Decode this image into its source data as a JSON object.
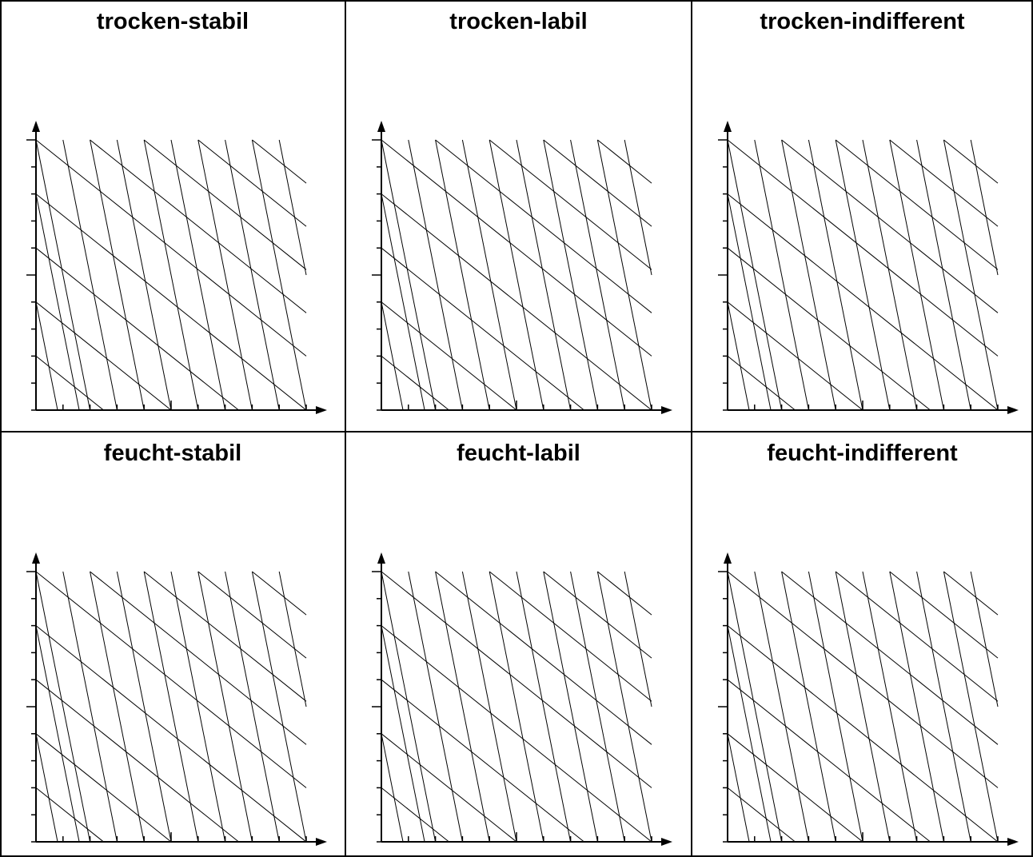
{
  "panels": [
    {
      "title": "trocken-stabil"
    },
    {
      "title": "trocken-labil"
    },
    {
      "title": "trocken-indifferent"
    },
    {
      "title": "feucht-stabil"
    },
    {
      "title": "feucht-labil"
    },
    {
      "title": "feucht-indifferent"
    }
  ],
  "colors": {
    "line": "#000000",
    "background": "#ffffff"
  }
}
